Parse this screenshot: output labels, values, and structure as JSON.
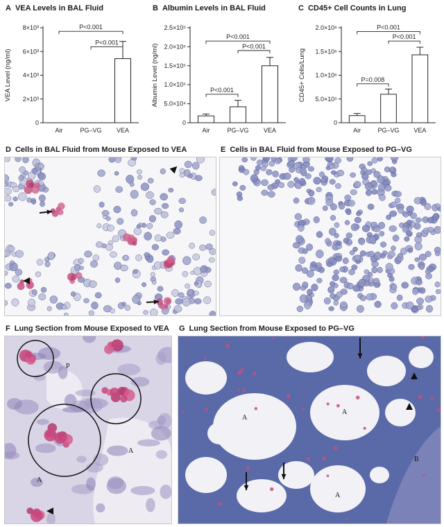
{
  "panels": {
    "a": {
      "letter": "A",
      "title": "VEA Levels in BAL Fluid"
    },
    "b": {
      "letter": "B",
      "title": "Albumin Levels in BAL Fluid"
    },
    "c": {
      "letter": "C",
      "title": "CD45+ Cell Counts in Lung"
    },
    "d": {
      "letter": "D",
      "title": "Cells in BAL Fluid from Mouse Exposed to VEA"
    },
    "e": {
      "letter": "E",
      "title": "Cells in BAL Fluid from Mouse Exposed to PG–VG"
    },
    "f": {
      "letter": "F",
      "title": "Lung Section from Mouse Exposed to VEA",
      "labels": [
        "P",
        "A",
        "A"
      ]
    },
    "g": {
      "letter": "G",
      "title": "Lung Section from Mouse Exposed to PG–VG",
      "labels": [
        "A",
        "A",
        "A",
        "B"
      ]
    }
  },
  "chart_data": [
    {
      "type": "bar",
      "categories": [
        "Air",
        "PG–VG",
        "VEA"
      ],
      "values": [
        0,
        0,
        5400
      ],
      "errors": [
        0,
        0,
        1450
      ],
      "ylabel": "VEA Level (ng/ml)",
      "ylim": [
        0,
        8000
      ],
      "yticks": [
        0,
        2000,
        4000,
        6000,
        8000
      ],
      "ytick_labels": [
        "0",
        "2×10³",
        "4×10³",
        "6×10³",
        "8×10³"
      ],
      "comparisons": [
        {
          "from": 0,
          "to": 2,
          "label": "P<0.001",
          "y": 7700
        },
        {
          "from": 1,
          "to": 2,
          "label": "P<0.001",
          "y": 6400
        }
      ]
    },
    {
      "type": "bar",
      "categories": [
        "Air",
        "PG–VG",
        "VEA"
      ],
      "values": [
        18000,
        42000,
        150000
      ],
      "errors": [
        5000,
        17000,
        22000
      ],
      "ylabel": "Albumin Level (ng/ml)",
      "ylim": [
        0,
        250000
      ],
      "yticks": [
        0,
        50000,
        100000,
        150000,
        200000,
        250000
      ],
      "ytick_labels": [
        "0",
        "5.0×10⁴",
        "1.0×10⁵",
        "1.5×10⁵",
        "2.0×10⁵",
        "2.5×10⁵"
      ],
      "comparisons": [
        {
          "from": 0,
          "to": 2,
          "label": "P<0.001",
          "y": 215000
        },
        {
          "from": 1,
          "to": 2,
          "label": "P<0.001",
          "y": 190000
        },
        {
          "from": 0,
          "to": 1,
          "label": "P<0.001",
          "y": 75000
        }
      ]
    },
    {
      "type": "bar",
      "categories": [
        "Air",
        "PG–VG",
        "VEA"
      ],
      "values": [
        150000,
        600000,
        1430000
      ],
      "errors": [
        45000,
        110000,
        160000
      ],
      "ylabel": "CD45+ Cells/Lung",
      "ylim": [
        0,
        2000000
      ],
      "yticks": [
        0,
        500000,
        1000000,
        1500000,
        2000000
      ],
      "ytick_labels": [
        "0",
        "5.0×10⁵",
        "1.0×10⁶",
        "1.5×10⁶",
        "2.0×10⁶"
      ],
      "comparisons": [
        {
          "from": 0,
          "to": 2,
          "label": "P<0.001",
          "y": 1920000
        },
        {
          "from": 1,
          "to": 2,
          "label": "P<0.001",
          "y": 1720000
        },
        {
          "from": 0,
          "to": 1,
          "label": "P=0.008",
          "y": 820000
        }
      ]
    }
  ]
}
